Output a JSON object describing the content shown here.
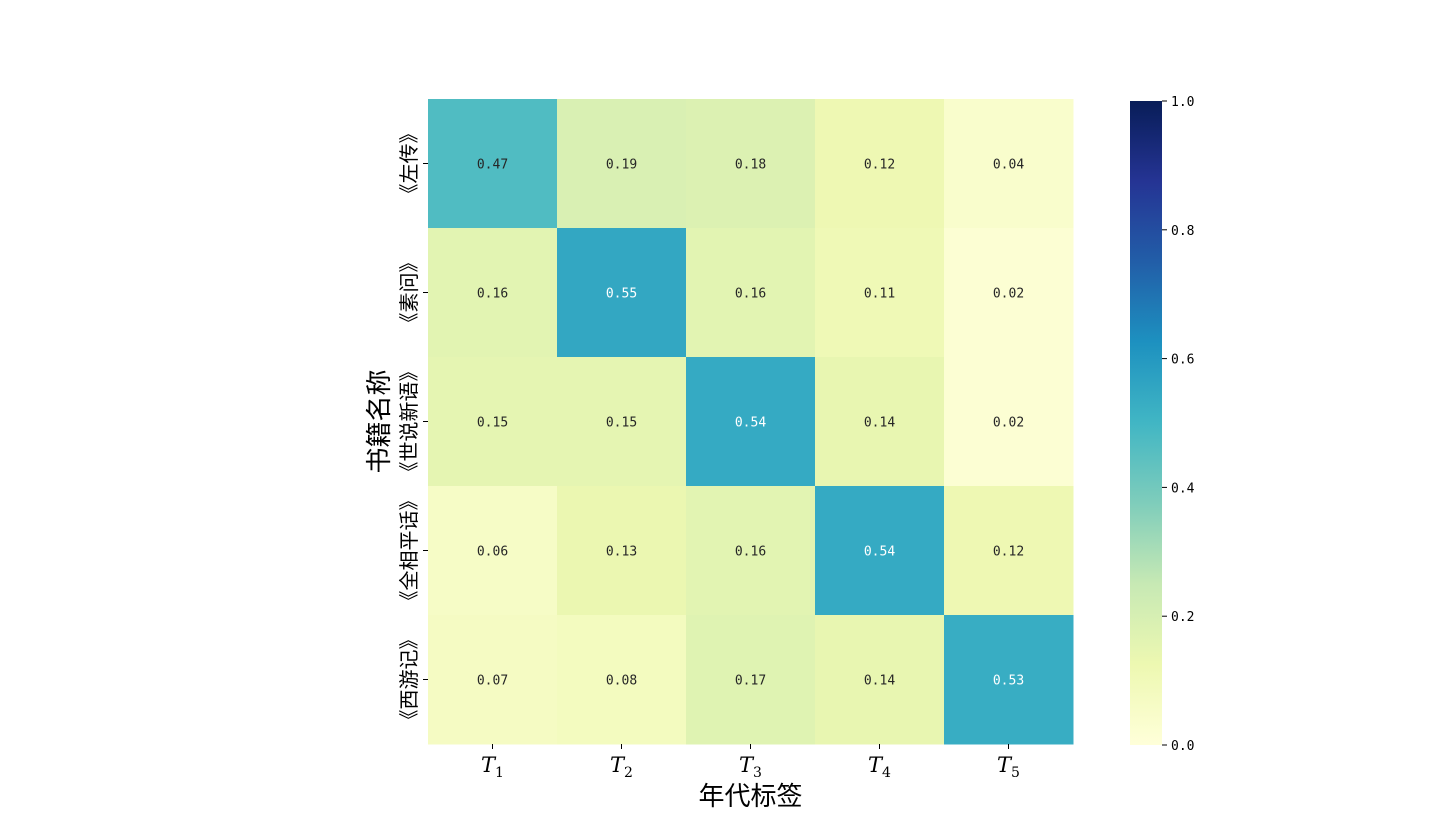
{
  "chart_data": {
    "type": "heatmap",
    "title": "",
    "xlabel": "年代标签",
    "ylabel": "书籍名称",
    "x_categories": [
      {
        "base": "T",
        "sub": "1"
      },
      {
        "base": "T",
        "sub": "2"
      },
      {
        "base": "T",
        "sub": "3"
      },
      {
        "base": "T",
        "sub": "4"
      },
      {
        "base": "T",
        "sub": "5"
      }
    ],
    "y_categories": [
      "《左传》",
      "《素问》",
      "《世说新语》",
      "《全相平话》",
      "《西游记》"
    ],
    "values": [
      [
        0.47,
        0.19,
        0.18,
        0.12,
        0.04
      ],
      [
        0.16,
        0.55,
        0.16,
        0.11,
        0.02
      ],
      [
        0.15,
        0.15,
        0.54,
        0.14,
        0.02
      ],
      [
        0.06,
        0.13,
        0.16,
        0.54,
        0.12
      ],
      [
        0.07,
        0.08,
        0.17,
        0.14,
        0.53
      ]
    ],
    "value_labels": [
      [
        "0.47",
        "0.19",
        "0.18",
        "0.12",
        "0.04"
      ],
      [
        "0.16",
        "0.55",
        "0.16",
        "0.11",
        "0.02"
      ],
      [
        "0.15",
        "0.15",
        "0.54",
        "0.14",
        "0.02"
      ],
      [
        "0.06",
        "0.13",
        "0.16",
        "0.54",
        "0.12"
      ],
      [
        "0.07",
        "0.08",
        "0.17",
        "0.14",
        "0.53"
      ]
    ],
    "colormap": "YlGnBu",
    "vmin": 0.0,
    "vmax": 1.0,
    "colorbar_ticks": [
      {
        "value": 0.0,
        "label": "0.0"
      },
      {
        "value": 0.2,
        "label": "0.2"
      },
      {
        "value": 0.4,
        "label": "0.4"
      },
      {
        "value": 0.6,
        "label": "0.6"
      },
      {
        "value": 0.8,
        "label": "0.8"
      },
      {
        "value": 1.0,
        "label": "1.0"
      }
    ],
    "colormap_stops": [
      "#ffffd9",
      "#edf8b1",
      "#c7e9b4",
      "#7fcdbb",
      "#41b6c4",
      "#1d91c0",
      "#225ea8",
      "#253494",
      "#081d58"
    ],
    "grid": false,
    "legend": "colorbar-right"
  }
}
